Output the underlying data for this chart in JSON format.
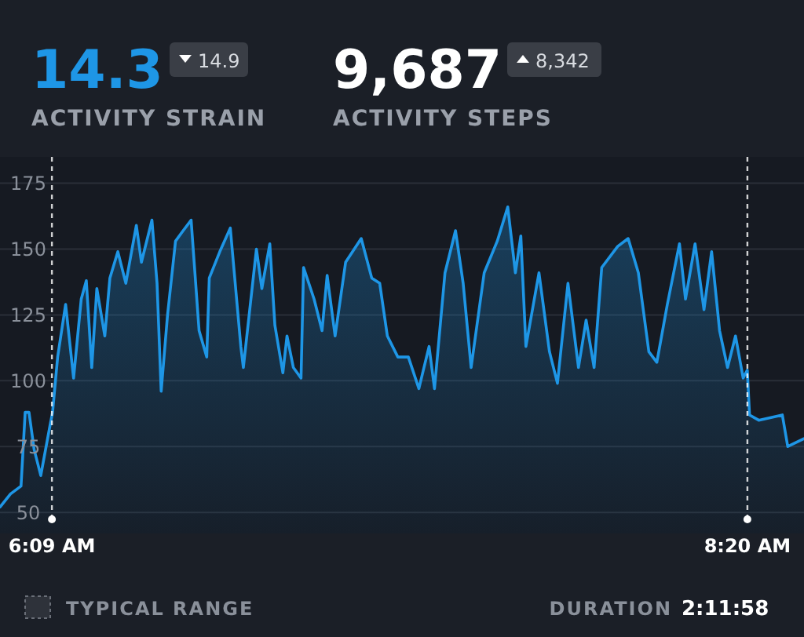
{
  "chart_data": {
    "type": "area",
    "annotations": [
      "14.3",
      "14.9",
      "ACTIVITY STRAIN",
      "9,687",
      "8,342",
      "ACTIVITY STEPS",
      "TYPICAL RANGE",
      "DURATION",
      "2:11:58"
    ],
    "series": [
      {
        "color": "#1e96e6",
        "x": [
          5.987,
          6.02,
          6.053,
          6.066,
          6.078,
          6.094,
          6.115,
          6.144,
          6.152,
          6.168,
          6.193,
          6.218,
          6.242,
          6.258,
          6.275,
          6.291,
          6.316,
          6.332,
          6.357,
          6.382,
          6.415,
          6.431,
          6.464,
          6.48,
          6.493,
          6.513,
          6.538,
          6.562,
          6.587,
          6.612,
          6.636,
          6.644,
          6.677,
          6.71,
          6.743,
          6.751,
          6.792,
          6.809,
          6.834,
          6.85,
          6.875,
          6.888,
          6.908,
          6.932,
          6.94,
          6.973,
          6.998,
          7.014,
          7.039,
          7.072,
          7.121,
          7.154,
          7.179,
          7.203,
          7.236,
          7.269,
          7.302,
          7.334,
          7.351,
          7.384,
          7.417,
          7.441,
          7.466,
          7.507,
          7.548,
          7.581,
          7.605,
          7.622,
          7.638,
          7.679,
          7.712,
          7.737,
          7.77,
          7.803,
          7.827,
          7.852,
          7.876,
          7.926,
          7.959,
          7.991,
          8.024,
          8.049,
          8.082,
          8.12,
          8.139,
          8.169,
          8.197,
          8.221,
          8.246,
          8.271,
          8.296,
          8.32,
          8.333,
          8.34,
          8.369,
          8.443,
          8.46,
          8.511
        ],
        "values": [
          52,
          57,
          60,
          88,
          88,
          74,
          64,
          83,
          88,
          109,
          129,
          101,
          131,
          138,
          105,
          135,
          117,
          139,
          149,
          137,
          159,
          145,
          161,
          137,
          96,
          125,
          153,
          157,
          161,
          119,
          109,
          139,
          149,
          158,
          113,
          105,
          150,
          135,
          152,
          121,
          103,
          117,
          105,
          101,
          143,
          131,
          119,
          140,
          117,
          145,
          154,
          139,
          137,
          117,
          109,
          109,
          97,
          113,
          97,
          141,
          157,
          137,
          105,
          141,
          153,
          166,
          141,
          155,
          113,
          141,
          111,
          99,
          137,
          105,
          123,
          105,
          143,
          151,
          154,
          141,
          111,
          107,
          129,
          152,
          131,
          152,
          127,
          149,
          119,
          105,
          117,
          101,
          104,
          87,
          85,
          87,
          75,
          78
        ]
      }
    ],
    "xlim": [
      5.987,
      8.511
    ],
    "xticks": [
      {
        "value": 6.15,
        "label": "6:09 AM"
      },
      {
        "value": 8.3333,
        "label": "8:20 AM"
      }
    ],
    "ylim": [
      42,
      185
    ],
    "yticks": [
      50,
      75,
      100,
      125,
      150,
      175
    ],
    "grid": "y",
    "ref_lines": [
      {
        "axis": "x",
        "value": 6.15,
        "color": "#ffffff",
        "line_style": "dashed"
      },
      {
        "axis": "x",
        "value": 8.3333,
        "color": "#ffffff",
        "line_style": "dashed"
      }
    ]
  }
}
